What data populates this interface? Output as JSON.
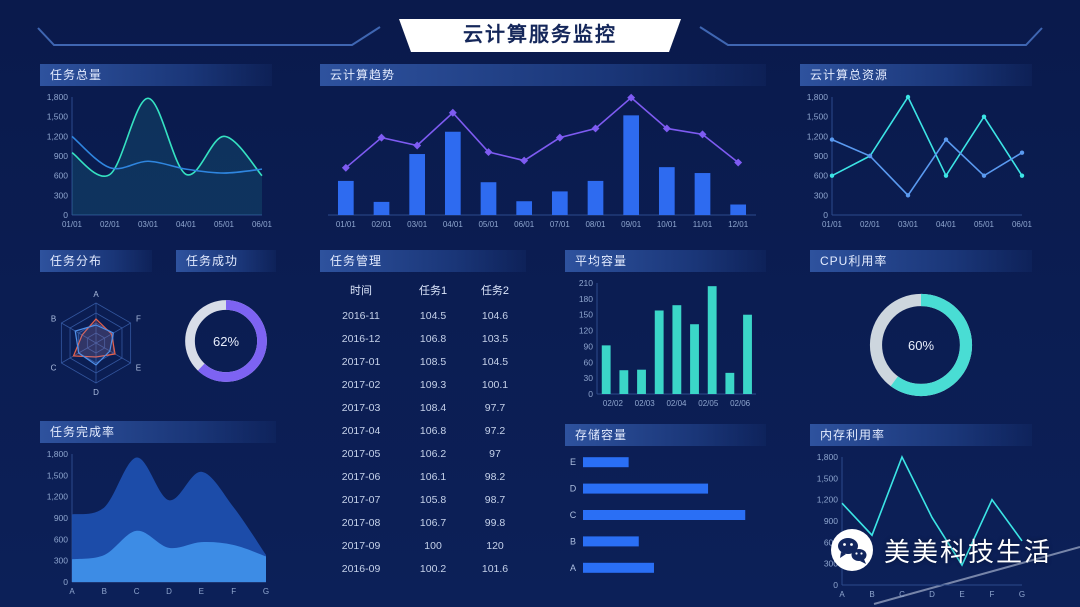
{
  "page": {
    "title": "云计算服务监控"
  },
  "watermark": {
    "icon": "wechat-icon",
    "text": "美美科技生活"
  },
  "panels": {
    "task_total": {
      "title": "任务总量"
    },
    "cloud_trend": {
      "title": "云计算趋势"
    },
    "cloud_resource": {
      "title": "云计算总资源"
    },
    "task_distribution": {
      "title": "任务分布"
    },
    "task_success": {
      "title": "任务成功"
    },
    "task_management": {
      "title": "任务管理"
    },
    "avg_capacity": {
      "title": "平均容量"
    },
    "cpu_usage": {
      "title": "CPU利用率"
    },
    "task_completion": {
      "title": "任务完成率"
    },
    "storage_capacity": {
      "title": "存储容量"
    },
    "memory_usage": {
      "title": "内存利用率"
    }
  },
  "chart_data": [
    {
      "id": "task_total",
      "type": "line",
      "title": "任务总量",
      "x": [
        "01/01",
        "02/01",
        "03/01",
        "04/01",
        "05/01",
        "06/01"
      ],
      "y_max": 1800,
      "y_tick_labels": [
        "0",
        "300",
        "600",
        "900",
        "1,200",
        "1,500",
        "1,800"
      ],
      "point_layout": "edge",
      "smooth": true,
      "series": [
        {
          "name": "series-1",
          "color": "#35e2c2",
          "area": true,
          "values": [
            950,
            620,
            1780,
            620,
            1200,
            600
          ]
        },
        {
          "name": "series-2",
          "color": "#2f86e0",
          "area": false,
          "values": [
            1200,
            720,
            820,
            700,
            640,
            700
          ]
        }
      ]
    },
    {
      "id": "cloud_trend",
      "type": "combo",
      "title": "云计算趋势",
      "x": [
        "01/01",
        "02/01",
        "03/01",
        "04/01",
        "05/01",
        "06/01",
        "07/01",
        "08/01",
        "09/01",
        "10/01",
        "11/01",
        "12/01"
      ],
      "y_max": 1800,
      "bar_color": "#2e6bf0",
      "bars": [
        520,
        200,
        930,
        1270,
        500,
        210,
        360,
        520,
        1520,
        730,
        640,
        160
      ],
      "line": {
        "color": "#7e5bf2",
        "marker": "diamond",
        "values": [
          720,
          1180,
          1060,
          1560,
          960,
          830,
          1180,
          1320,
          1790,
          1320,
          1230,
          800
        ]
      }
    },
    {
      "id": "cloud_resource",
      "type": "line",
      "title": "云计算总资源",
      "x": [
        "01/01",
        "02/01",
        "03/01",
        "04/01",
        "05/01",
        "06/01"
      ],
      "y_max": 1800,
      "y_tick_labels": [
        "0",
        "300",
        "600",
        "900",
        "1,200",
        "1,500",
        "1,800"
      ],
      "point_layout": "edge",
      "smooth": false,
      "marker": "circle",
      "series": [
        {
          "name": "series-1",
          "color": "#3ce5e5",
          "values": [
            600,
            900,
            1800,
            600,
            1500,
            600
          ]
        },
        {
          "name": "series-2",
          "color": "#5a9af0",
          "values": [
            1150,
            900,
            300,
            1150,
            600,
            950
          ]
        }
      ]
    },
    {
      "id": "task_distribution",
      "type": "radar",
      "title": "任务分布",
      "labels": [
        "A",
        "B",
        "C",
        "D",
        "E",
        "F"
      ],
      "max": 100,
      "levels": 4,
      "series": [
        {
          "name": "radar-red",
          "color": "#e8604a",
          "values": [
            60,
            40,
            65,
            35,
            55,
            45
          ]
        },
        {
          "name": "radar-blue",
          "color": "#4f8fe8",
          "values": [
            45,
            60,
            50,
            55,
            40,
            50
          ]
        }
      ]
    },
    {
      "id": "task_success",
      "type": "donut",
      "title": "任务成功",
      "percent": 62,
      "label": "62%",
      "color": "#7d63f2",
      "track": "#d8dde8"
    },
    {
      "id": "task_management",
      "type": "table",
      "title": "任务管理",
      "columns": [
        "时间",
        "任务1",
        "任务2"
      ],
      "rows": [
        [
          "2016-11",
          "104.5",
          "104.6"
        ],
        [
          "2016-12",
          "106.8",
          "103.5"
        ],
        [
          "2017-01",
          "108.5",
          "104.5"
        ],
        [
          "2017-02",
          "109.3",
          "100.1"
        ],
        [
          "2017-03",
          "108.4",
          "97.7"
        ],
        [
          "2017-04",
          "106.8",
          "97.2"
        ],
        [
          "2017-05",
          "106.2",
          "97"
        ],
        [
          "2017-06",
          "106.1",
          "98.2"
        ],
        [
          "2017-07",
          "105.8",
          "98.7"
        ],
        [
          "2017-08",
          "106.7",
          "99.8"
        ],
        [
          "2017-09",
          "100",
          "120"
        ],
        [
          "2016-09",
          "100.2",
          "101.6"
        ]
      ]
    },
    {
      "id": "avg_capacity",
      "type": "bar",
      "title": "平均容量",
      "y_max": 210,
      "y_tick_labels": [
        "0",
        "30",
        "60",
        "90",
        "120",
        "150",
        "180",
        "210"
      ],
      "values": [
        92,
        45,
        46,
        158,
        168,
        132,
        204,
        40,
        150
      ],
      "color": "#3bd6c8",
      "x_labels": [
        "02/02",
        "02/03",
        "02/04",
        "02/05",
        "02/06"
      ]
    },
    {
      "id": "cpu_usage",
      "type": "donut",
      "title": "CPU利用率",
      "percent": 60,
      "label": "60%",
      "color": "#49ddd4",
      "track": "#cdd6de"
    },
    {
      "id": "task_completion",
      "type": "stacked_area",
      "title": "任务完成率",
      "x": [
        "A",
        "B",
        "C",
        "D",
        "E",
        "F",
        "G"
      ],
      "y_max": 1800,
      "y_tick_labels": [
        "0",
        "300",
        "600",
        "900",
        "1,200",
        "1,500",
        "1,800"
      ],
      "layers": [
        {
          "name": "upper",
          "color": "#1e4fae",
          "opacity": 0.95,
          "values": [
            950,
            1050,
            1750,
            1150,
            1550,
            1050,
            380
          ]
        },
        {
          "name": "lower",
          "color": "#3f8fe8",
          "opacity": 0.95,
          "values": [
            320,
            380,
            720,
            480,
            560,
            520,
            360
          ]
        }
      ]
    },
    {
      "id": "storage_capacity",
      "type": "hbar",
      "title": "存储容量",
      "categories": [
        "E",
        "D",
        "C",
        "B",
        "A"
      ],
      "values": [
        27,
        74,
        96,
        33,
        42
      ],
      "color": "#2a6ff5"
    },
    {
      "id": "memory_usage",
      "type": "line",
      "title": "内存利用率",
      "x": [
        "A",
        "B",
        "C",
        "D",
        "E",
        "F",
        "G"
      ],
      "y_max": 1800,
      "y_tick_labels": [
        "0",
        "300",
        "600",
        "900",
        "1,200",
        "1,500",
        "1,800"
      ],
      "point_layout": "edge",
      "smooth": false,
      "series": [
        {
          "name": "series-1",
          "color": "#3ce5e5",
          "values": [
            1150,
            700,
            1800,
            950,
            280,
            1200,
            620
          ]
        }
      ]
    }
  ]
}
